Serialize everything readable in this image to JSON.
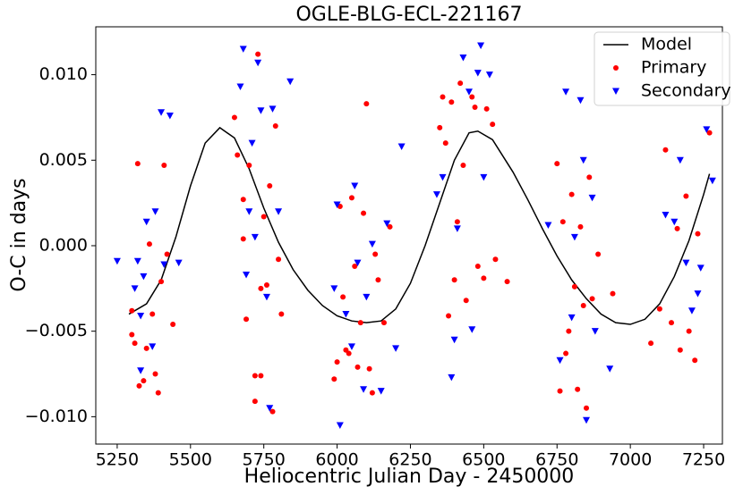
{
  "chart_data": {
    "type": "scatter",
    "title": "OGLE-BLG-ECL-221167",
    "x_label": "Heliocentric Julian Day - 2450000",
    "y_label": "O-C in days",
    "xlim": [
      5177,
      7314
    ],
    "ylim": [
      -0.0116,
      0.0128
    ],
    "xticks": [
      5250,
      5500,
      5750,
      6000,
      6250,
      6500,
      6750,
      7000,
      7250
    ],
    "yticks": [
      {
        "value": -0.01,
        "label": "−0.010"
      },
      {
        "value": -0.005,
        "label": "−0.005"
      },
      {
        "value": 0,
        "label": "0.000"
      },
      {
        "value": 0.005,
        "label": "0.005"
      },
      {
        "value": 0.01,
        "label": "0.010"
      }
    ],
    "legend": "upper right",
    "series": [
      {
        "name": "Model",
        "color": "black",
        "style": "line",
        "x": [
          5290,
          5350,
          5400,
          5450,
          5500,
          5550,
          5600,
          5650,
          5700,
          5750,
          5800,
          5850,
          5900,
          5950,
          6000,
          6050,
          6100,
          6150,
          6200,
          6250,
          6300,
          6350,
          6400,
          6450,
          6480,
          6530,
          6600,
          6650,
          6700,
          6750,
          6800,
          6850,
          6900,
          6950,
          7000,
          7050,
          7100,
          7150,
          7200,
          7250,
          7270
        ],
        "values": [
          -0.004,
          -0.0034,
          -0.002,
          0.0005,
          0.0035,
          0.006,
          0.0069,
          0.0063,
          0.0045,
          0.0022,
          0.0002,
          -0.0014,
          -0.0026,
          -0.0035,
          -0.0041,
          -0.0044,
          -0.0045,
          -0.0044,
          -0.0037,
          -0.0022,
          0,
          0.0025,
          0.005,
          0.0066,
          0.0067,
          0.0062,
          0.0043,
          0.0027,
          0.001,
          -0.0006,
          -0.002,
          -0.0031,
          -0.004,
          -0.0045,
          -0.0046,
          -0.0043,
          -0.0034,
          -0.0018,
          0.0003,
          0.003,
          0.0042
        ]
      },
      {
        "name": "Primary",
        "color": "red",
        "marker": "o",
        "x": [
          5300,
          5310,
          5320,
          5325,
          5340,
          5350,
          5360,
          5370,
          5380,
          5390,
          5400,
          5410,
          5420,
          5440,
          5300,
          5650,
          5660,
          5680,
          5690,
          5700,
          5720,
          5730,
          5740,
          5750,
          5760,
          5780,
          5790,
          5800,
          5810,
          5720,
          5740,
          5680,
          5770,
          5990,
          6000,
          6010,
          6020,
          6030,
          6040,
          6060,
          6080,
          6090,
          6100,
          6110,
          6120,
          6140,
          6160,
          6180,
          6070,
          6050,
          6130,
          6350,
          6360,
          6380,
          6390,
          6400,
          6420,
          6430,
          6440,
          6460,
          6470,
          6480,
          6500,
          6510,
          6530,
          6540,
          6580,
          6370,
          6410,
          6750,
          6760,
          6770,
          6780,
          6790,
          6800,
          6810,
          6820,
          6830,
          6840,
          6850,
          6860,
          6870,
          6890,
          6940,
          7070,
          7100,
          7120,
          7140,
          7160,
          7170,
          7190,
          7200,
          7220,
          7230,
          7270
        ],
        "values": [
          -0.0052,
          -0.0057,
          0.0048,
          -0.0082,
          -0.0079,
          -0.006,
          0.0001,
          -0.004,
          -0.0075,
          -0.0086,
          -0.0021,
          0.0047,
          -0.0005,
          -0.0046,
          -0.0038,
          0.0075,
          0.0053,
          0.0004,
          -0.0043,
          0.0047,
          -0.0091,
          0.0112,
          -0.0025,
          0.0017,
          -0.0023,
          -0.0097,
          0.007,
          -0.0008,
          -0.004,
          -0.0076,
          -0.0076,
          0.0027,
          0.0035,
          -0.0078,
          -0.0068,
          0.0023,
          -0.003,
          -0.0061,
          -0.0063,
          -0.0012,
          -0.0045,
          0.0019,
          0.0083,
          -0.0072,
          -0.0086,
          -0.002,
          -0.0045,
          0.0011,
          -0.0071,
          0.0028,
          -0.0005,
          0.0069,
          0.0087,
          -0.0041,
          0.0084,
          -0.002,
          0.0095,
          0.0047,
          -0.0032,
          0.0087,
          0.0081,
          -0.0012,
          -0.0019,
          0.008,
          0.0071,
          -0.0008,
          -0.0021,
          0.006,
          0.0014,
          0.0048,
          -0.0085,
          0.0014,
          -0.0063,
          -0.005,
          0.003,
          -0.0024,
          -0.0084,
          0.0011,
          -0.0035,
          -0.0095,
          0.004,
          -0.0031,
          -0.0005,
          -0.0028,
          -0.0057,
          -0.0037,
          0.0056,
          -0.0045,
          0.001,
          -0.0061,
          0.0029,
          -0.005,
          -0.0067,
          0.0007,
          0.0066
        ]
      },
      {
        "name": "Secondary",
        "color": "blue",
        "marker": "v",
        "x": [
          5250,
          5310,
          5320,
          5330,
          5340,
          5350,
          5370,
          5380,
          5400,
          5410,
          5430,
          5460,
          5330,
          5670,
          5680,
          5690,
          5700,
          5710,
          5730,
          5740,
          5760,
          5780,
          5800,
          5840,
          5770,
          5720,
          5990,
          6000,
          6010,
          6030,
          6050,
          6070,
          6090,
          6100,
          6120,
          6150,
          6170,
          6200,
          6220,
          6060,
          6340,
          6360,
          6390,
          6410,
          6430,
          6450,
          6460,
          6480,
          6490,
          6500,
          6520,
          6400,
          6720,
          6760,
          6780,
          6800,
          6810,
          6830,
          6850,
          6870,
          6880,
          6930,
          6840,
          7120,
          7150,
          7170,
          7190,
          7210,
          7230,
          7260,
          7280,
          7240
        ],
        "values": [
          -0.0009,
          -0.0025,
          -0.0009,
          -0.0041,
          -0.0018,
          0.0014,
          -0.0059,
          0.002,
          0.0078,
          -0.0011,
          0.0076,
          -0.001,
          -0.0073,
          0.0093,
          0.0115,
          -0.0017,
          0.002,
          0.006,
          0.0107,
          0.0079,
          -0.003,
          0.008,
          0.002,
          0.0096,
          -0.0095,
          0.0005,
          -0.0025,
          0.0024,
          -0.0105,
          -0.004,
          -0.0059,
          -0.001,
          -0.0084,
          -0.003,
          0.0001,
          -0.0085,
          0.0013,
          -0.006,
          0.0058,
          0.0035,
          0.003,
          0.004,
          -0.0077,
          0.001,
          0.011,
          0.009,
          -0.0049,
          0.0101,
          0.0117,
          0.004,
          0.01,
          -0.0055,
          0.0012,
          -0.0067,
          0.009,
          -0.0042,
          0.0005,
          0.0085,
          -0.0102,
          0.0028,
          -0.005,
          -0.0072,
          0.005,
          0.0018,
          0.0014,
          0.005,
          -0.001,
          -0.0038,
          -0.0028,
          0.0068,
          0.0038,
          -0.0013
        ]
      }
    ]
  }
}
